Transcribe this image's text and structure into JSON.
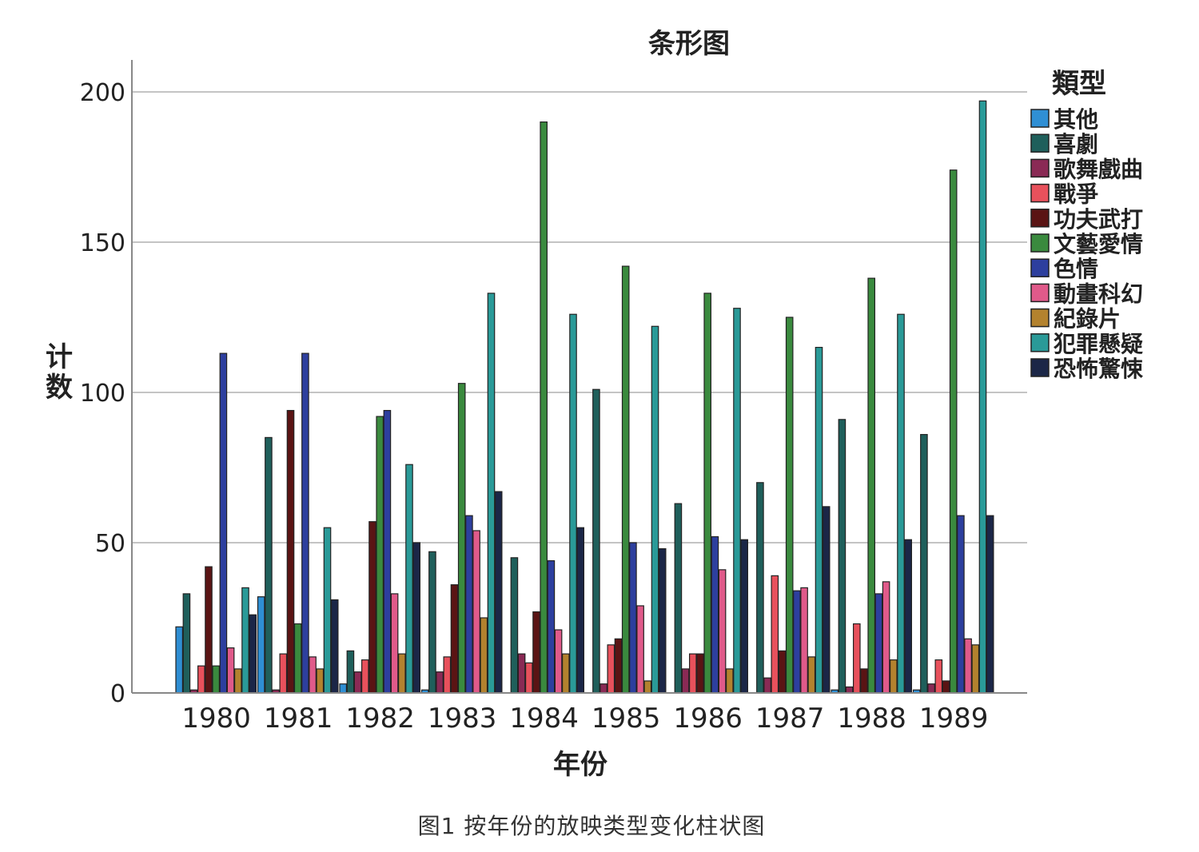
{
  "chart_data": {
    "type": "bar",
    "title": "条形图",
    "xlabel": "年份",
    "ylabel": "计数",
    "ylim": [
      0,
      210
    ],
    "yticks": [
      0,
      50,
      100,
      150,
      200
    ],
    "grid": true,
    "legend_position": "right",
    "legend_title": "類型",
    "categories": [
      "1980",
      "1981",
      "1982",
      "1983",
      "1984",
      "1985",
      "1986",
      "1987",
      "1988",
      "1989"
    ],
    "series": [
      {
        "name": "其他",
        "color": "#2f8fd4",
        "values": [
          22,
          32,
          3,
          1,
          0,
          0,
          0,
          0,
          1,
          1
        ]
      },
      {
        "name": "喜劇",
        "color": "#1f5f5b",
        "values": [
          33,
          85,
          14,
          47,
          45,
          101,
          63,
          70,
          91,
          86
        ]
      },
      {
        "name": "歌舞戲曲",
        "color": "#8a2a55",
        "values": [
          1,
          1,
          7,
          7,
          13,
          3,
          8,
          5,
          2,
          3
        ]
      },
      {
        "name": "戰爭",
        "color": "#e8515c",
        "values": [
          9,
          13,
          11,
          12,
          10,
          16,
          13,
          39,
          23,
          11
        ]
      },
      {
        "name": "功夫武打",
        "color": "#5a1414",
        "values": [
          42,
          94,
          57,
          36,
          27,
          18,
          13,
          14,
          8,
          4
        ]
      },
      {
        "name": "文藝愛情",
        "color": "#3a8a3e",
        "values": [
          9,
          23,
          92,
          103,
          190,
          142,
          133,
          125,
          138,
          174
        ]
      },
      {
        "name": "色情",
        "color": "#2d3f9e",
        "values": [
          113,
          113,
          94,
          59,
          44,
          50,
          52,
          34,
          33,
          59
        ]
      },
      {
        "name": "動畫科幻",
        "color": "#e05a8a",
        "values": [
          15,
          12,
          33,
          54,
          21,
          29,
          41,
          35,
          37,
          18
        ]
      },
      {
        "name": "紀錄片",
        "color": "#b3822e",
        "values": [
          8,
          8,
          13,
          25,
          13,
          4,
          8,
          12,
          11,
          16
        ]
      },
      {
        "name": "犯罪懸疑",
        "color": "#2a9a98",
        "values": [
          35,
          55,
          76,
          133,
          126,
          122,
          128,
          115,
          126,
          197
        ]
      },
      {
        "name": "恐怖驚悚",
        "color": "#1b2647",
        "values": [
          26,
          31,
          50,
          67,
          55,
          48,
          51,
          62,
          51,
          59
        ]
      }
    ]
  },
  "caption": "图1  按年份的放映类型变化柱状图"
}
